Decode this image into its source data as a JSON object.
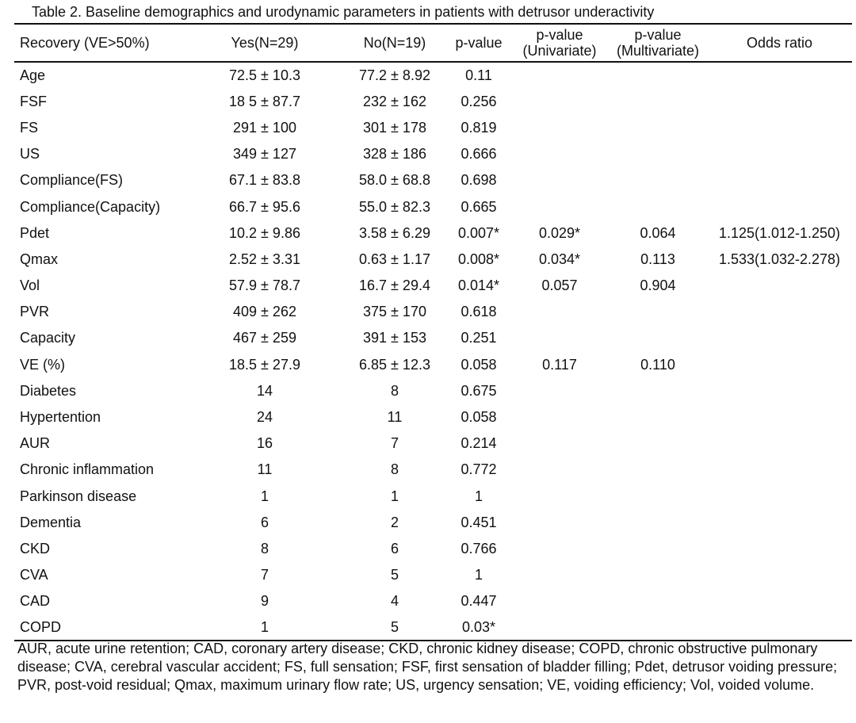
{
  "caption": "Table 2. Baseline demographics and urodynamic parameters in patients with detrusor underactivity",
  "headers": {
    "recovery": "Recovery (VE>50%)",
    "yes": "Yes(N=29)",
    "no": "No(N=19)",
    "pvalue": "p-value",
    "pvalue_uni_l1": "p-value",
    "pvalue_uni_l2": "(Univariate)",
    "pvalue_multi_l1": "p-value",
    "pvalue_multi_l2": "(Multivariate)",
    "odds": "Odds ratio"
  },
  "rows": [
    {
      "label": "Age",
      "yes": "72.5 ± 10.3",
      "no": "77.2 ± 8.92",
      "p": "0.11",
      "uni": "",
      "multi": "",
      "or": ""
    },
    {
      "label": "FSF",
      "yes": "18  5 ± 87.7",
      "no": "232 ± 162",
      "p": "0.256",
      "uni": "",
      "multi": "",
      "or": ""
    },
    {
      "label": "FS",
      "yes": "291 ± 100",
      "no": "301 ± 178",
      "p": "0.819",
      "uni": "",
      "multi": "",
      "or": ""
    },
    {
      "label": "US",
      "yes": "349 ± 127",
      "no": "328 ± 186",
      "p": "0.666",
      "uni": "",
      "multi": "",
      "or": ""
    },
    {
      "label": "Compliance(FS)",
      "yes": "67.1 ± 83.8",
      "no": "58.0 ± 68.8",
      "p": "0.698",
      "uni": "",
      "multi": "",
      "or": ""
    },
    {
      "label": "Compliance(Capacity)",
      "yes": "66.7 ± 95.6",
      "no": "55.0 ± 82.3",
      "p": "0.665",
      "uni": "",
      "multi": "",
      "or": ""
    },
    {
      "label": "Pdet",
      "yes": "10.2 ± 9.86",
      "no": "3.58 ± 6.29",
      "p": "0.007*",
      "uni": "0.029*",
      "multi": "0.064",
      "or": "1.125(1.012-1.250)"
    },
    {
      "label": "Qmax",
      "yes": "2.52 ± 3.31",
      "no": "0.63 ± 1.17",
      "p": "0.008*",
      "uni": "0.034*",
      "multi": "0.113",
      "or": "1.533(1.032-2.278)"
    },
    {
      "label": "Vol",
      "yes": "57.9 ± 78.7",
      "no": "16.7 ± 29.4",
      "p": "0.014*",
      "uni": "0.057",
      "multi": "0.904",
      "or": ""
    },
    {
      "label": "PVR",
      "yes": "409 ± 262",
      "no": "375 ± 170",
      "p": "0.618",
      "uni": "",
      "multi": "",
      "or": ""
    },
    {
      "label": "Capacity",
      "yes": "467 ± 259",
      "no": "391 ± 153",
      "p": "0.251",
      "uni": "",
      "multi": "",
      "or": ""
    },
    {
      "label": "VE (%)",
      "yes": "18.5 ± 27.9",
      "no": "6.85 ± 12.3",
      "p": "0.058",
      "uni": "0.117",
      "multi": "0.110",
      "or": ""
    },
    {
      "label": "Diabetes",
      "yes": "14",
      "no": "8",
      "p": "0.675",
      "uni": "",
      "multi": "",
      "or": ""
    },
    {
      "label": "Hypertention",
      "yes": "24",
      "no": "11",
      "p": "0.058",
      "uni": "",
      "multi": "",
      "or": ""
    },
    {
      "label": "AUR",
      "yes": "16",
      "no": "7",
      "p": "0.214",
      "uni": "",
      "multi": "",
      "or": ""
    },
    {
      "label": "Chronic inflammation",
      "yes": "11",
      "no": "8",
      "p": "0.772",
      "uni": "",
      "multi": "",
      "or": ""
    },
    {
      "label": "Parkinson disease",
      "yes": "1",
      "no": "1",
      "p": "1",
      "uni": "",
      "multi": "",
      "or": ""
    },
    {
      "label": "Dementia",
      "yes": "6",
      "no": "2",
      "p": "0.451",
      "uni": "",
      "multi": "",
      "or": ""
    },
    {
      "label": "CKD",
      "yes": "8",
      "no": "6",
      "p": "0.766",
      "uni": "",
      "multi": "",
      "or": ""
    },
    {
      "label": "CVA",
      "yes": "7",
      "no": "5",
      "p": "1",
      "uni": "",
      "multi": "",
      "or": ""
    },
    {
      "label": "CAD",
      "yes": "9",
      "no": "4",
      "p": "0.447",
      "uni": "",
      "multi": "",
      "or": ""
    },
    {
      "label": "COPD",
      "yes": "1",
      "no": "5",
      "p": "0.03*",
      "uni": "",
      "multi": "",
      "or": ""
    }
  ],
  "footnote": "AUR, acute urine retention; CAD, coronary artery disease; CKD, chronic kidney disease; COPD, chronic obstructive pulmonary disease; CVA, cerebral vascular accident; FS, full sensation; FSF, first sensation of bladder filling; Pdet, detrusor voiding pressure; PVR, post-void residual; Qmax, maximum urinary flow rate; US, urgency sensation; VE, voiding efficiency; Vol, voided volume."
}
